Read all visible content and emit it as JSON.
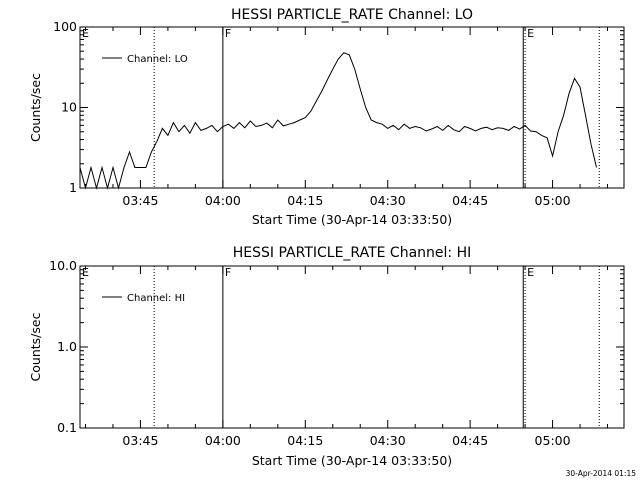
{
  "footer": {
    "timestamp": "30-Apr-2014 01:15"
  },
  "chart_data": [
    {
      "type": "line",
      "title": "HESSI PARTICLE_RATE Channel: LO",
      "xlabel": "Start Time (30-Apr-14 03:33:50)",
      "ylabel": "Counts/sec",
      "y_scale": "log",
      "ylim": [
        1,
        100
      ],
      "xlim": [
        "03:34:00",
        "05:13:00"
      ],
      "x_ticks": [
        "03:45",
        "04:00",
        "04:15",
        "04:30",
        "04:45",
        "05:00"
      ],
      "y_ticks": [
        "1",
        "10",
        "100"
      ],
      "legend": {
        "entries": [
          "Channel: LO"
        ],
        "position": "top-left"
      },
      "segments": [
        {
          "label": "E",
          "time": "03:34:00",
          "style": "none"
        },
        {
          "label": "",
          "time": "03:47:30",
          "style": "dotted"
        },
        {
          "label": "F",
          "time": "04:00:00",
          "style": "solid"
        },
        {
          "label": "",
          "time": "04:54:40",
          "style": "solid"
        },
        {
          "label": "E",
          "time": "04:55:00",
          "style": "dotted"
        },
        {
          "label": "",
          "time": "05:08:30",
          "style": "dotted"
        }
      ],
      "series": [
        {
          "name": "Channel: LO",
          "x": [
            "03:34",
            "03:35",
            "03:36",
            "03:37",
            "03:38",
            "03:39",
            "03:40",
            "03:41",
            "03:42",
            "03:43",
            "03:44",
            "03:45",
            "03:46",
            "03:47",
            "03:48",
            "03:49",
            "03:50",
            "03:51",
            "03:52",
            "03:53",
            "03:54",
            "03:55",
            "03:56",
            "03:57",
            "03:58",
            "03:59",
            "04:00",
            "04:01",
            "04:02",
            "04:03",
            "04:04",
            "04:05",
            "04:06",
            "04:07",
            "04:08",
            "04:09",
            "04:10",
            "04:11",
            "04:12",
            "04:13",
            "04:14",
            "04:15",
            "04:16",
            "04:17",
            "04:18",
            "04:19",
            "04:20",
            "04:21",
            "04:22",
            "04:23",
            "04:24",
            "04:25",
            "04:26",
            "04:27",
            "04:28",
            "04:29",
            "04:30",
            "04:31",
            "04:32",
            "04:33",
            "04:34",
            "04:35",
            "04:36",
            "04:37",
            "04:38",
            "04:39",
            "04:40",
            "04:41",
            "04:42",
            "04:43",
            "04:44",
            "04:45",
            "04:46",
            "04:47",
            "04:48",
            "04:49",
            "04:50",
            "04:51",
            "04:52",
            "04:53",
            "04:54",
            "04:55",
            "04:56",
            "04:57",
            "04:58",
            "04:59",
            "05:00",
            "05:01",
            "05:02",
            "05:03",
            "05:04",
            "05:05",
            "05:06",
            "05:07",
            "05:08"
          ],
          "y": [
            1.8,
            1,
            1.8,
            1,
            1.8,
            1,
            1.8,
            1,
            1.8,
            2.8,
            1.8,
            1.8,
            1.8,
            2.8,
            3.8,
            5.5,
            4.5,
            6.5,
            5,
            6,
            4.8,
            6.5,
            5.2,
            5.5,
            6,
            5,
            5.8,
            6.2,
            5.5,
            6.5,
            5.6,
            6.8,
            5.8,
            6,
            6.4,
            5.6,
            7,
            5.9,
            6.2,
            6.5,
            7,
            7.5,
            9,
            12,
            16,
            22,
            30,
            40,
            48,
            45,
            30,
            17,
            10,
            7,
            6.5,
            6.2,
            5.5,
            6,
            5.3,
            6.2,
            5.5,
            5.8,
            5.6,
            5.1,
            5.4,
            5.8,
            5.2,
            6,
            5.3,
            5,
            5.8,
            5.5,
            5.1,
            5.5,
            5.7,
            5.3,
            5.6,
            5.5,
            5.2,
            5.8,
            5.4,
            6,
            5.1,
            5,
            4.5,
            4.2,
            2.5,
            5,
            8,
            15,
            23,
            18,
            8,
            3.5,
            1.8
          ]
        }
      ]
    },
    {
      "type": "line",
      "title": "HESSI PARTICLE_RATE Channel: HI",
      "xlabel": "Start Time (30-Apr-14 03:33:50)",
      "ylabel": "Counts/sec",
      "y_scale": "log",
      "ylim": [
        0.1,
        10
      ],
      "xlim": [
        "03:34:00",
        "05:13:00"
      ],
      "x_ticks": [
        "03:45",
        "04:00",
        "04:15",
        "04:30",
        "04:45",
        "05:00"
      ],
      "y_ticks": [
        "0.1",
        "1.0",
        "10.0"
      ],
      "legend": {
        "entries": [
          "Channel: HI"
        ],
        "position": "top-left"
      },
      "segments": [
        {
          "label": "E",
          "time": "03:34:00",
          "style": "none"
        },
        {
          "label": "",
          "time": "03:47:30",
          "style": "dotted"
        },
        {
          "label": "F",
          "time": "04:00:00",
          "style": "solid"
        },
        {
          "label": "",
          "time": "04:54:40",
          "style": "solid"
        },
        {
          "label": "E",
          "time": "04:55:00",
          "style": "dotted"
        },
        {
          "label": "",
          "time": "05:08:30",
          "style": "dotted"
        }
      ],
      "series": [
        {
          "name": "Channel: HI",
          "x": [],
          "y": []
        }
      ]
    }
  ]
}
